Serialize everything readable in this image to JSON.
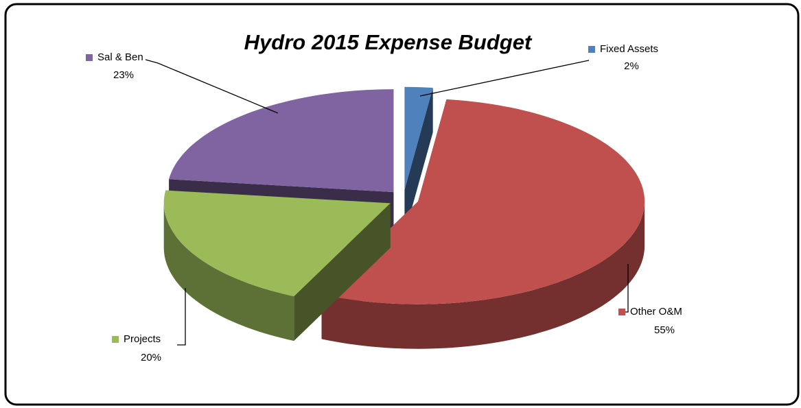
{
  "chart_data": {
    "type": "pie",
    "title": "Hydro 2015 Expense Budget",
    "categories": [
      "Fixed Assets",
      "Other O&M",
      "Projects",
      "Sal & Ben"
    ],
    "values": [
      2,
      55,
      20,
      23
    ],
    "value_labels": [
      "2%",
      "55%",
      "20%",
      "23%"
    ],
    "colors": [
      "#4f81bd",
      "#c0504d",
      "#9bbb59",
      "#8064a2"
    ]
  }
}
